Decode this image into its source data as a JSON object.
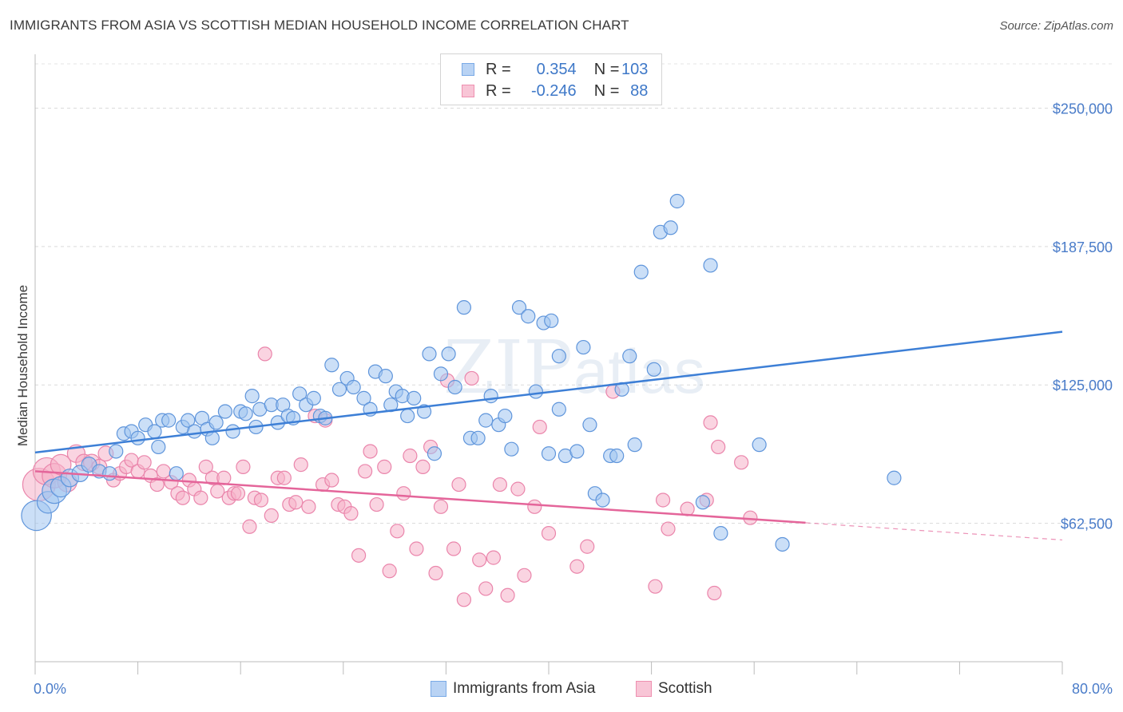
{
  "header": {
    "title": "IMMIGRANTS FROM ASIA VS SCOTTISH MEDIAN HOUSEHOLD INCOME CORRELATION CHART",
    "source": "Source: ZipAtlas.com"
  },
  "watermark": {
    "zip": "ZIP",
    "atlas": "atlas"
  },
  "legend": {
    "r_label": "R =",
    "n_label": "N =",
    "rows": [
      {
        "name": "Immigrants from Asia",
        "r": "0.354",
        "n": "103",
        "color": "#7aaae6",
        "fill": "#b9d3f4"
      },
      {
        "name": "Scottish",
        "r": "-0.246",
        "n": "88",
        "color": "#ee8fb0",
        "fill": "#f8c5d6"
      }
    ]
  },
  "chart_data": {
    "type": "scatter",
    "title": "IMMIGRANTS FROM ASIA VS SCOTTISH MEDIAN HOUSEHOLD INCOME CORRELATION CHART",
    "xlabel": "",
    "ylabel": "Median Household Income",
    "xlim": [
      0,
      80
    ],
    "ylim": [
      0,
      250000
    ],
    "x_tick_labels": [
      "0.0%",
      "80.0%"
    ],
    "y_ticks": [
      62500,
      125000,
      187500,
      250000
    ],
    "y_tick_labels": [
      "$62,500",
      "$125,000",
      "$187,500",
      "$250,000"
    ],
    "grid": true,
    "legend_position": "top-center",
    "series": [
      {
        "name": "Immigrants from Asia",
        "color": "#3d7fd6",
        "trend": {
          "x": [
            0,
            80
          ],
          "y": [
            94500,
            149000
          ],
          "dashed_from": null
        },
        "points": [
          [
            0.1,
            66000,
            2.2
          ],
          [
            1.0,
            72000,
            1.6
          ],
          [
            1.5,
            77000,
            1.8
          ],
          [
            2.0,
            79000,
            1.5
          ],
          [
            2.7,
            83000,
            1.3
          ],
          [
            3.5,
            85000,
            1.2
          ],
          [
            4.2,
            89000,
            1.1
          ],
          [
            5.0,
            86000,
            1.0
          ],
          [
            5.8,
            85000,
            1.0
          ],
          [
            6.3,
            95000,
            1.0
          ],
          [
            6.9,
            103000,
            1.0
          ],
          [
            7.5,
            104000,
            1.0
          ],
          [
            8.0,
            101000,
            1.0
          ],
          [
            8.6,
            107000,
            1.0
          ],
          [
            9.3,
            104000,
            1.0
          ],
          [
            9.6,
            97000,
            1.0
          ],
          [
            9.9,
            109000,
            1.0
          ],
          [
            10.4,
            109000,
            1.0
          ],
          [
            11.0,
            85000,
            1.0
          ],
          [
            11.5,
            106000,
            1.0
          ],
          [
            11.9,
            109000,
            1.0
          ],
          [
            12.4,
            104000,
            1.0
          ],
          [
            13.0,
            110000,
            1.0
          ],
          [
            13.4,
            105000,
            1.0
          ],
          [
            13.8,
            101000,
            1.0
          ],
          [
            14.1,
            108000,
            1.0
          ],
          [
            14.8,
            113000,
            1.0
          ],
          [
            15.4,
            104000,
            1.0
          ],
          [
            16.0,
            113000,
            1.0
          ],
          [
            16.4,
            112000,
            1.0
          ],
          [
            16.9,
            120000,
            1.0
          ],
          [
            17.2,
            106000,
            1.0
          ],
          [
            17.5,
            114000,
            1.0
          ],
          [
            18.4,
            116000,
            1.0
          ],
          [
            18.9,
            108000,
            1.0
          ],
          [
            19.3,
            116000,
            1.0
          ],
          [
            19.7,
            111000,
            1.0
          ],
          [
            20.1,
            110000,
            1.0
          ],
          [
            20.6,
            121000,
            1.0
          ],
          [
            21.1,
            116000,
            1.0
          ],
          [
            21.7,
            119000,
            1.0
          ],
          [
            22.2,
            111000,
            1.0
          ],
          [
            22.6,
            110000,
            1.0
          ],
          [
            23.1,
            134000,
            1.0
          ],
          [
            23.7,
            123000,
            1.0
          ],
          [
            24.3,
            128000,
            1.0
          ],
          [
            24.8,
            124000,
            1.0
          ],
          [
            25.6,
            119000,
            1.0
          ],
          [
            26.1,
            114000,
            1.0
          ],
          [
            26.5,
            131000,
            1.0
          ],
          [
            27.3,
            129000,
            1.0
          ],
          [
            27.7,
            116000,
            1.0
          ],
          [
            28.1,
            122000,
            1.0
          ],
          [
            28.6,
            120000,
            1.0
          ],
          [
            29.0,
            111000,
            1.0
          ],
          [
            29.5,
            119000,
            1.0
          ],
          [
            30.3,
            113000,
            1.0
          ],
          [
            30.7,
            139000,
            1.0
          ],
          [
            31.1,
            94000,
            1.0
          ],
          [
            31.6,
            130000,
            1.0
          ],
          [
            32.2,
            139000,
            1.0
          ],
          [
            32.7,
            124000,
            1.0
          ],
          [
            33.4,
            160000,
            1.0
          ],
          [
            33.9,
            101000,
            1.0
          ],
          [
            34.5,
            101000,
            1.0
          ],
          [
            35.1,
            109000,
            1.0
          ],
          [
            35.5,
            120000,
            1.0
          ],
          [
            36.1,
            107000,
            1.0
          ],
          [
            36.6,
            111000,
            1.0
          ],
          [
            37.1,
            96000,
            1.0
          ],
          [
            37.7,
            160000,
            1.0
          ],
          [
            38.4,
            156000,
            1.0
          ],
          [
            39.0,
            122000,
            1.0
          ],
          [
            39.6,
            153000,
            1.0
          ],
          [
            40.2,
            154000,
            1.0
          ],
          [
            40.0,
            94000,
            1.0
          ],
          [
            40.8,
            114000,
            1.0
          ],
          [
            40.8,
            138000,
            1.0
          ],
          [
            41.3,
            93000,
            1.0
          ],
          [
            42.2,
            95000,
            1.0
          ],
          [
            42.7,
            142000,
            1.0
          ],
          [
            43.2,
            107000,
            1.0
          ],
          [
            43.6,
            76000,
            1.0
          ],
          [
            44.2,
            73000,
            1.0
          ],
          [
            44.8,
            93000,
            1.0
          ],
          [
            45.3,
            93000,
            1.0
          ],
          [
            45.7,
            123000,
            1.0
          ],
          [
            46.3,
            138000,
            1.0
          ],
          [
            46.7,
            98000,
            1.0
          ],
          [
            47.2,
            176000,
            1.0
          ],
          [
            48.2,
            132000,
            1.0
          ],
          [
            48.7,
            194000,
            1.0
          ],
          [
            49.5,
            196000,
            1.0
          ],
          [
            50.0,
            208000,
            1.0
          ],
          [
            52.6,
            179000,
            1.0
          ],
          [
            52.0,
            72000,
            1.0
          ],
          [
            53.4,
            58000,
            1.0
          ],
          [
            56.4,
            98000,
            1.0
          ],
          [
            58.2,
            53000,
            1.0
          ],
          [
            66.9,
            83000,
            1.0
          ]
        ]
      },
      {
        "name": "Scottish",
        "color": "#e4659a",
        "trend": {
          "x": [
            0,
            80
          ],
          "y": [
            86000,
            55000
          ],
          "dashed_from": 60
        },
        "points": [
          [
            0.3,
            80000,
            2.4
          ],
          [
            0.9,
            86000,
            2.0
          ],
          [
            1.5,
            84000,
            1.8
          ],
          [
            2.0,
            89000,
            1.5
          ],
          [
            2.5,
            81000,
            1.4
          ],
          [
            3.2,
            94000,
            1.3
          ],
          [
            3.8,
            90000,
            1.2
          ],
          [
            4.4,
            90000,
            1.2
          ],
          [
            5.0,
            88000,
            1.1
          ],
          [
            5.5,
            94000,
            1.1
          ],
          [
            6.1,
            82000,
            1.0
          ],
          [
            6.6,
            85000,
            1.0
          ],
          [
            7.1,
            88000,
            1.0
          ],
          [
            7.5,
            91000,
            1.0
          ],
          [
            8.0,
            86000,
            1.0
          ],
          [
            8.5,
            90000,
            1.0
          ],
          [
            9.0,
            84000,
            1.0
          ],
          [
            9.5,
            80000,
            1.0
          ],
          [
            10.0,
            86000,
            1.0
          ],
          [
            10.6,
            81000,
            1.0
          ],
          [
            11.1,
            76000,
            1.0
          ],
          [
            11.5,
            74000,
            1.0
          ],
          [
            12.0,
            82000,
            1.0
          ],
          [
            12.4,
            78000,
            1.0
          ],
          [
            12.9,
            74000,
            1.0
          ],
          [
            13.3,
            88000,
            1.0
          ],
          [
            13.8,
            83000,
            1.0
          ],
          [
            14.2,
            77000,
            1.0
          ],
          [
            14.7,
            83000,
            1.0
          ],
          [
            15.1,
            74000,
            1.0
          ],
          [
            15.5,
            76000,
            1.0
          ],
          [
            15.8,
            76000,
            1.0
          ],
          [
            16.2,
            88000,
            1.0
          ],
          [
            16.7,
            61000,
            1.0
          ],
          [
            17.1,
            74000,
            1.0
          ],
          [
            17.6,
            73000,
            1.0
          ],
          [
            17.9,
            139000,
            1.0
          ],
          [
            18.4,
            66000,
            1.0
          ],
          [
            18.9,
            83000,
            1.0
          ],
          [
            19.4,
            83000,
            1.0
          ],
          [
            19.8,
            71000,
            1.0
          ],
          [
            20.3,
            72000,
            1.0
          ],
          [
            20.7,
            89000,
            1.0
          ],
          [
            21.3,
            70000,
            1.0
          ],
          [
            21.8,
            111000,
            1.0
          ],
          [
            22.4,
            80000,
            1.0
          ],
          [
            22.6,
            109000,
            1.0
          ],
          [
            23.1,
            82000,
            1.0
          ],
          [
            23.6,
            71000,
            1.0
          ],
          [
            24.1,
            70000,
            1.0
          ],
          [
            24.6,
            67000,
            1.0
          ],
          [
            25.2,
            48000,
            1.0
          ],
          [
            25.7,
            86000,
            1.0
          ],
          [
            26.1,
            95000,
            1.0
          ],
          [
            26.6,
            71000,
            1.0
          ],
          [
            27.2,
            88000,
            1.0
          ],
          [
            27.6,
            41000,
            1.0
          ],
          [
            28.2,
            59000,
            1.0
          ],
          [
            28.7,
            76000,
            1.0
          ],
          [
            29.2,
            93000,
            1.0
          ],
          [
            29.7,
            51000,
            1.0
          ],
          [
            30.2,
            88000,
            1.0
          ],
          [
            30.8,
            97000,
            1.0
          ],
          [
            31.2,
            40000,
            1.0
          ],
          [
            31.6,
            70000,
            1.0
          ],
          [
            32.1,
            127000,
            1.0
          ],
          [
            32.6,
            51000,
            1.0
          ],
          [
            33.0,
            80000,
            1.0
          ],
          [
            33.4,
            28000,
            1.0
          ],
          [
            34.0,
            128000,
            1.0
          ],
          [
            34.6,
            46000,
            1.0
          ],
          [
            35.1,
            33000,
            1.0
          ],
          [
            35.7,
            47000,
            1.0
          ],
          [
            36.2,
            80000,
            1.0
          ],
          [
            36.8,
            30000,
            1.0
          ],
          [
            37.6,
            78000,
            1.0
          ],
          [
            38.1,
            39000,
            1.0
          ],
          [
            38.9,
            70000,
            1.0
          ],
          [
            39.3,
            106000,
            1.0
          ],
          [
            40.0,
            58000,
            1.0
          ],
          [
            42.2,
            43000,
            1.0
          ],
          [
            43.0,
            52000,
            1.0
          ],
          [
            45.0,
            122000,
            1.0
          ],
          [
            48.3,
            34000,
            1.0
          ],
          [
            48.9,
            73000,
            1.0
          ],
          [
            49.3,
            60000,
            1.0
          ],
          [
            50.8,
            69000,
            1.0
          ],
          [
            52.3,
            73000,
            1.0
          ],
          [
            52.6,
            108000,
            1.0
          ],
          [
            53.2,
            97000,
            1.0
          ],
          [
            55.0,
            90000,
            1.0
          ],
          [
            55.7,
            65000,
            1.0
          ],
          [
            52.9,
            31000,
            1.0
          ]
        ]
      }
    ]
  },
  "bottom_legend": {
    "items": [
      {
        "label": "Immigrants from Asia"
      },
      {
        "label": "Scottish"
      }
    ]
  }
}
